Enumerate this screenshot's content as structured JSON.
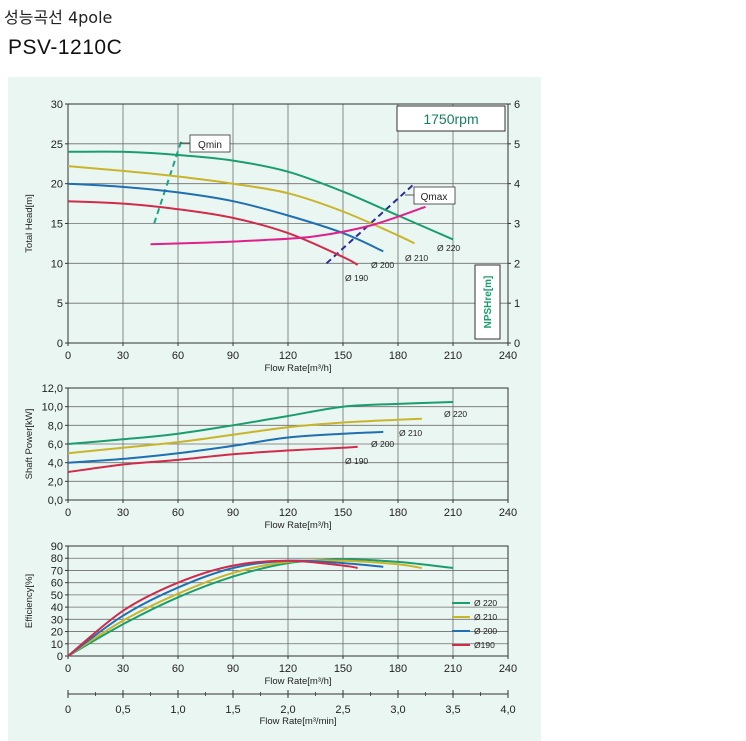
{
  "header": {
    "title": "성능곡선 4pole",
    "model": "PSV-1210C"
  },
  "colors": {
    "panel_bg": "#eaf6f1",
    "grid": "#6e6e6e",
    "d220": "#1a9e6e",
    "d210": "#c8b52a",
    "d200": "#1f6fb3",
    "d190": "#d22a4a",
    "npsh": "#e0208c",
    "qmin": "#1aa58a",
    "qmax": "#2a2a9a",
    "rpm": "#17805e"
  },
  "chart_data": [
    {
      "id": "head",
      "type": "line",
      "rpm_label": "1750rpm",
      "xlabel": "Flow Rate[m³/h]",
      "ylabel": "Total Head[m]",
      "y2label": "NPSHre[m]",
      "xlim": [
        0,
        240
      ],
      "ylim": [
        0,
        30
      ],
      "y2lim": [
        0,
        6
      ],
      "xticks": [
        "0",
        "30",
        "60",
        "90",
        "120",
        "150",
        "180",
        "210",
        "240"
      ],
      "yticks": [
        "0",
        "5",
        "10",
        "15",
        "20",
        "25",
        "30"
      ],
      "y2ticks": [
        "0",
        "1",
        "2",
        "3",
        "4",
        "5",
        "6"
      ],
      "grid": true,
      "series": [
        {
          "name": "Ø 220",
          "color_key": "d220",
          "x": [
            0,
            30,
            60,
            90,
            120,
            150,
            180,
            210
          ],
          "y": [
            24,
            24,
            23.6,
            22.9,
            21.5,
            19,
            16,
            13
          ]
        },
        {
          "name": "Ø 210",
          "color_key": "d210",
          "x": [
            0,
            30,
            60,
            90,
            120,
            150,
            180,
            189
          ],
          "y": [
            22.2,
            21.6,
            20.9,
            20,
            18.8,
            16.5,
            13.5,
            12.5
          ]
        },
        {
          "name": "Ø 200",
          "color_key": "d200",
          "x": [
            0,
            30,
            60,
            90,
            120,
            150,
            172
          ],
          "y": [
            20,
            19.6,
            18.9,
            17.8,
            16,
            13.8,
            11.5
          ]
        },
        {
          "name": "Ø 190",
          "color_key": "d190",
          "x": [
            0,
            30,
            60,
            90,
            120,
            150,
            158
          ],
          "y": [
            17.8,
            17.5,
            16.8,
            15.7,
            13.8,
            10.8,
            9.8
          ]
        },
        {
          "name": "NPSHre",
          "color_key": "npsh",
          "axis": "y2",
          "x": [
            45,
            75,
            105,
            135,
            165,
            195
          ],
          "y": [
            2.48,
            2.52,
            2.58,
            2.68,
            2.95,
            3.42
          ]
        }
      ],
      "lines": [
        {
          "label": "Qmin",
          "color_key": "qmin",
          "x": [
            47,
            62
          ],
          "y": [
            15,
            25.5
          ]
        },
        {
          "label": "Qmax",
          "color_key": "qmax",
          "x": [
            141,
            188
          ],
          "y": [
            10,
            19.8
          ]
        }
      ]
    },
    {
      "id": "power",
      "type": "line",
      "xlabel": "Flow Rate[m³/h]",
      "ylabel": "Shaft Power[kW]",
      "xlim": [
        0,
        240
      ],
      "ylim": [
        0,
        12
      ],
      "xticks": [
        "0",
        "30",
        "60",
        "90",
        "120",
        "150",
        "180",
        "210",
        "240"
      ],
      "yticks": [
        "0,0",
        "2,0",
        "4,0",
        "6,0",
        "8,0",
        "10,0",
        "12,0"
      ],
      "grid": true,
      "series": [
        {
          "name": "Ø 220",
          "color_key": "d220",
          "x": [
            0,
            30,
            60,
            90,
            120,
            150,
            180,
            210
          ],
          "y": [
            6,
            6.5,
            7.1,
            8,
            9,
            10,
            10.3,
            10.5
          ]
        },
        {
          "name": "Ø 210",
          "color_key": "d210",
          "x": [
            0,
            30,
            60,
            90,
            120,
            150,
            180,
            193
          ],
          "y": [
            5,
            5.6,
            6.2,
            7,
            7.8,
            8.3,
            8.6,
            8.7
          ]
        },
        {
          "name": "Ø 200",
          "color_key": "d200",
          "x": [
            0,
            30,
            60,
            90,
            120,
            150,
            172
          ],
          "y": [
            4,
            4.4,
            5,
            5.8,
            6.7,
            7.1,
            7.3
          ]
        },
        {
          "name": "Ø 190",
          "color_key": "d190",
          "x": [
            0,
            30,
            60,
            90,
            120,
            150,
            158
          ],
          "y": [
            3,
            3.8,
            4.3,
            4.9,
            5.3,
            5.6,
            5.7
          ]
        }
      ]
    },
    {
      "id": "efficiency",
      "type": "line",
      "xlabel": "Flow Rate[m³/h]",
      "ylabel": "Efficiency[%]",
      "xlim": [
        0,
        240
      ],
      "ylim": [
        0,
        90
      ],
      "xticks": [
        "0",
        "30",
        "60",
        "90",
        "120",
        "150",
        "180",
        "210",
        "240"
      ],
      "yticks": [
        "0",
        "10",
        "20",
        "30",
        "40",
        "50",
        "60",
        "70",
        "80",
        "90"
      ],
      "grid": true,
      "legend": [
        "Ø 220",
        "Ø 210",
        "Ø 200",
        "Ø190"
      ],
      "series": [
        {
          "name": "Ø 220",
          "color_key": "d220",
          "x": [
            0,
            30,
            60,
            90,
            120,
            150,
            180,
            210
          ],
          "y": [
            0,
            26,
            48,
            65,
            76,
            79,
            77,
            72
          ]
        },
        {
          "name": "Ø 210",
          "color_key": "d210",
          "x": [
            0,
            30,
            60,
            90,
            120,
            150,
            180,
            193
          ],
          "y": [
            0,
            29,
            51,
            68,
            77,
            78,
            75,
            72
          ]
        },
        {
          "name": "Ø 200",
          "color_key": "d200",
          "x": [
            0,
            30,
            60,
            90,
            120,
            150,
            172
          ],
          "y": [
            0,
            33,
            56,
            72,
            78,
            76,
            73
          ]
        },
        {
          "name": "Ø 190",
          "color_key": "d190",
          "x": [
            0,
            30,
            60,
            90,
            120,
            150,
            158
          ],
          "y": [
            0,
            37,
            60,
            74,
            78,
            74,
            72
          ]
        }
      ]
    },
    {
      "id": "axis_m3min",
      "type": "axis",
      "xlabel": "Flow Rate[m³/min]",
      "xlim": [
        0,
        4
      ],
      "xticks": [
        "0",
        "0,5",
        "1,0",
        "1,5",
        "2,0",
        "2,5",
        "3,0",
        "3,5",
        "4,0"
      ]
    }
  ]
}
